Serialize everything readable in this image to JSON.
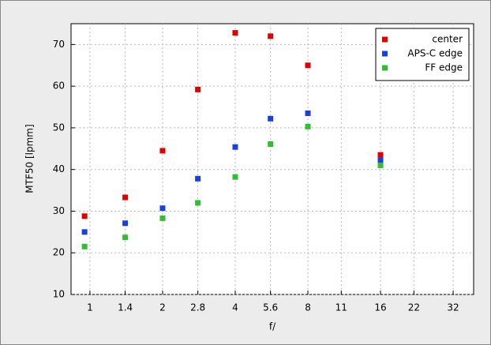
{
  "chart_data": {
    "type": "scatter",
    "x_label": "f/",
    "y_label": "MTF50 [lpmm]",
    "x": [
      0.95,
      1.4,
      2,
      2.8,
      4,
      5.6,
      8,
      16
    ],
    "series": [
      {
        "name": "center",
        "color": "#e00000",
        "values": [
          28.8,
          33.3,
          44.5,
          59.2,
          72.8,
          72.0,
          65.0,
          43.5
        ]
      },
      {
        "name": "APS-C edge",
        "color": "#1a3fe0",
        "values": [
          25.0,
          27.1,
          30.7,
          37.8,
          45.4,
          52.2,
          53.5,
          42.2
        ]
      },
      {
        "name": "FF edge",
        "color": "#2ec02e",
        "values": [
          21.5,
          23.7,
          28.3,
          32.0,
          38.2,
          46.1,
          50.3,
          41.0
        ]
      }
    ],
    "xscale": "log",
    "xlim": [
      0.835,
      38.9
    ],
    "xticks": [
      1,
      1.4,
      2,
      2.8,
      4,
      5.6,
      8,
      11,
      16,
      22,
      32
    ],
    "ylim": [
      10,
      75
    ],
    "yticks": [
      10,
      20,
      30,
      40,
      50,
      60,
      70
    ],
    "grid": true,
    "legend": "top-right"
  }
}
